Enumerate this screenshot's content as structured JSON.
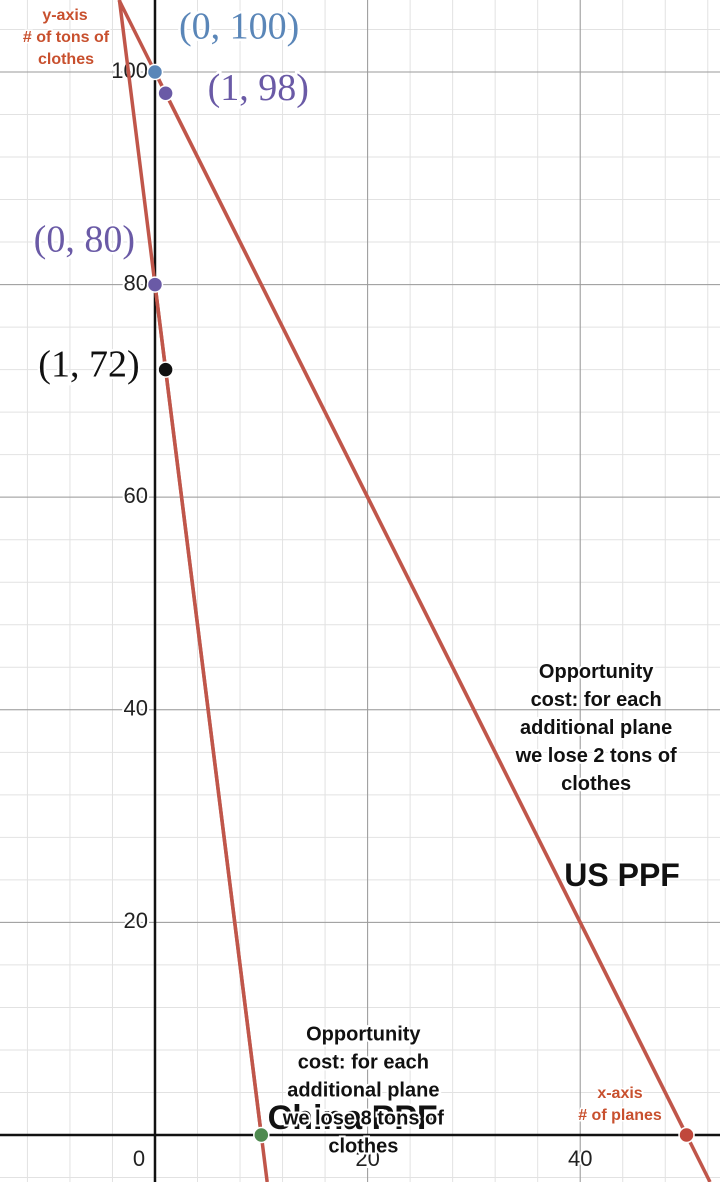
{
  "chart_data": {
    "type": "line",
    "xlim": [
      -14.58,
      53.15
    ],
    "ylim": [
      -4.42,
      106.77
    ],
    "xticks": [
      0,
      20,
      40
    ],
    "yticks": [
      20,
      40,
      60,
      80,
      100
    ],
    "grid": true,
    "minor_grid_step": 4,
    "series": [
      {
        "name": "China PPF",
        "color": "#c0564a",
        "x": [
          0,
          1,
          10
        ],
        "values": [
          80,
          72,
          0
        ]
      },
      {
        "name": "US PPF",
        "color": "#c0564a",
        "x": [
          0,
          1,
          50
        ],
        "values": [
          100,
          98,
          0
        ]
      }
    ],
    "points": [
      {
        "x": 0,
        "y": 100,
        "label": "(0, 100)",
        "color": "#5a86b8"
      },
      {
        "x": 1,
        "y": 98,
        "label": "(1, 98)",
        "color": "#6a5aa6"
      },
      {
        "x": 0,
        "y": 80,
        "label": "(0, 80)",
        "color": "#6a5aa6"
      },
      {
        "x": 1,
        "y": 72,
        "label": "(1, 72)",
        "color": "#111111"
      },
      {
        "x": 10,
        "y": 0,
        "color": "#4f8a50"
      },
      {
        "x": 50,
        "y": 0,
        "color": "#c0483c"
      }
    ],
    "annotations": [
      {
        "lines": [
          "Opportunity",
          "cost: for each",
          "additional plane",
          "we lose 2 tons of",
          "clothes"
        ]
      },
      {
        "lines": [
          "Opportunity",
          "cost: for each",
          "additional plane",
          "we lose 8 tons of",
          "clothes"
        ]
      }
    ],
    "y_axis_label": [
      "y-axis",
      "# of tons of",
      "clothes"
    ],
    "x_axis_label": [
      "x-axis",
      "# of planes"
    ]
  }
}
